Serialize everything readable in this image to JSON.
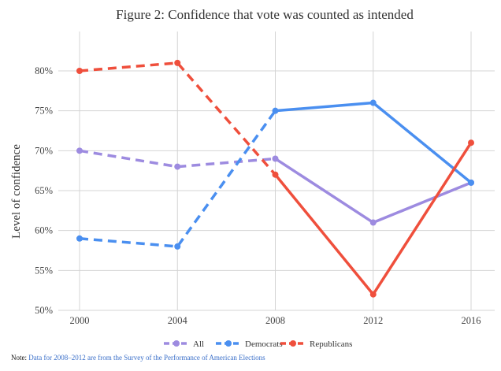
{
  "chart_data": {
    "type": "line",
    "title": "Figure 2: Confidence that vote was counted as intended",
    "xlabel": "",
    "ylabel": "Level of confidence",
    "categories": [
      "2000",
      "2004",
      "2008",
      "2012",
      "2016"
    ],
    "ylim": [
      50,
      80
    ],
    "yticks": [
      50,
      55,
      60,
      65,
      70,
      75,
      80
    ],
    "ytick_labels": [
      "50%",
      "55%",
      "60%",
      "65%",
      "70%",
      "75%",
      "80%"
    ],
    "grid": true,
    "legend_position": "bottom-center",
    "series": [
      {
        "name": "All",
        "color": "#9d8be0",
        "values": [
          70,
          68,
          69,
          61,
          66
        ],
        "line_style": "dashed for 2000–2008, solid for 2008–2016"
      },
      {
        "name": "Democrats",
        "color": "#4a8ff0",
        "values": [
          59,
          58,
          75,
          76,
          66
        ],
        "line_style": "dashed for 2000–2008, solid for 2008–2016"
      },
      {
        "name": "Republicans",
        "color": "#ef4f3c",
        "values": [
          80,
          81,
          67,
          52,
          71
        ],
        "line_style": "dashed for 2000–2008, solid for 2008–2016"
      }
    ]
  },
  "note": {
    "prefix": "Note:",
    "text": "Data for 2008–2012 are from the Survey of the Performance of American Elections"
  }
}
